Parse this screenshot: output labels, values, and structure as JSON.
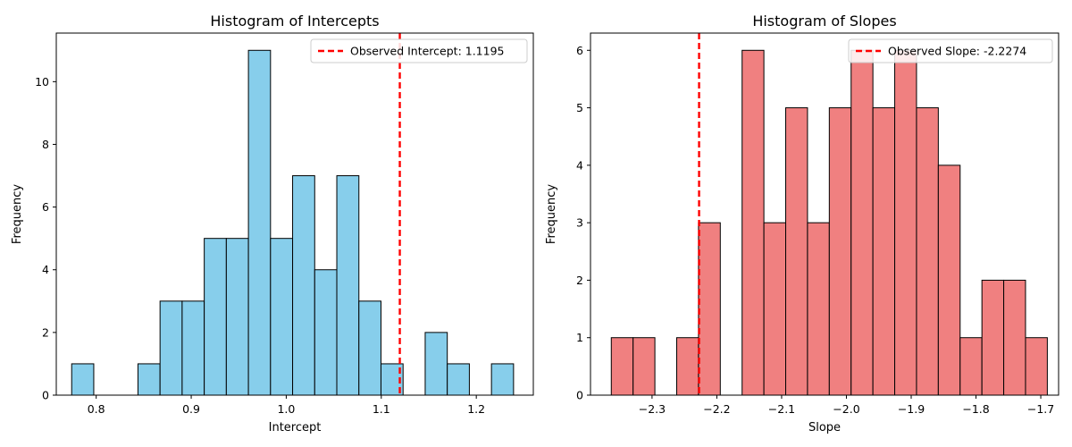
{
  "chart_data": [
    {
      "type": "bar",
      "title": "Histogram of Intercepts",
      "xlabel": "Intercept",
      "ylabel": "Frequency",
      "xlim": [
        0.758,
        1.26
      ],
      "ylim": [
        0,
        11.55
      ],
      "xticks": [
        0.8,
        0.9,
        1.0,
        1.1,
        1.2
      ],
      "xtick_labels": [
        "0.8",
        "0.9",
        "1.0",
        "1.1",
        "1.2"
      ],
      "yticks": [
        0,
        2,
        4,
        6,
        8,
        10
      ],
      "bin_start": 0.7742,
      "bin_width": 0.02325,
      "values": [
        1,
        0,
        0,
        1,
        3,
        3,
        5,
        5,
        11,
        5,
        7,
        4,
        7,
        3,
        1,
        0,
        2,
        1,
        0,
        1
      ],
      "bar_color": "#87ceeb",
      "edge_color": "#000000",
      "observed": {
        "value": 1.1195,
        "color": "#ff0000",
        "label": "Observed Intercept: 1.1195"
      },
      "legend": "top-right"
    },
    {
      "type": "bar",
      "title": "Histogram of Slopes",
      "xlabel": "Slope",
      "ylabel": "Frequency",
      "xlim": [
        -2.395,
        -1.6725
      ],
      "ylim": [
        0,
        6.3
      ],
      "xticks": [
        -2.3,
        -2.2,
        -2.1,
        -2.0,
        -1.9,
        -1.8,
        -1.7
      ],
      "xtick_labels": [
        "−2.3",
        "−2.2",
        "−2.1",
        "−2.0",
        "−1.9",
        "−1.8",
        "−1.7"
      ],
      "yticks": [
        0,
        1,
        2,
        3,
        4,
        5,
        6
      ],
      "bin_start": -2.3629,
      "bin_width": 0.03365,
      "values": [
        1,
        1,
        0,
        1,
        3,
        0,
        6,
        3,
        5,
        3,
        5,
        6,
        5,
        6,
        5,
        4,
        1,
        2,
        2,
        1
      ],
      "bar_color": "#f08080",
      "edge_color": "#000000",
      "observed": {
        "value": -2.2274,
        "color": "#ff0000",
        "label": "Observed Slope: -2.2274"
      },
      "legend": "top-right"
    }
  ]
}
